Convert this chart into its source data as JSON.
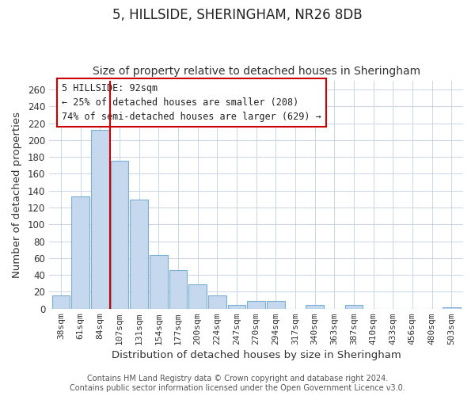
{
  "title": "5, HILLSIDE, SHERINGHAM, NR26 8DB",
  "subtitle": "Size of property relative to detached houses in Sheringham",
  "xlabel": "Distribution of detached houses by size in Sheringham",
  "ylabel": "Number of detached properties",
  "bar_labels": [
    "38sqm",
    "61sqm",
    "84sqm",
    "107sqm",
    "131sqm",
    "154sqm",
    "177sqm",
    "200sqm",
    "224sqm",
    "247sqm",
    "270sqm",
    "294sqm",
    "317sqm",
    "340sqm",
    "363sqm",
    "387sqm",
    "410sqm",
    "433sqm",
    "456sqm",
    "480sqm",
    "503sqm"
  ],
  "bar_values": [
    16,
    133,
    212,
    175,
    129,
    64,
    46,
    29,
    16,
    4,
    9,
    9,
    0,
    4,
    0,
    4,
    0,
    0,
    0,
    0,
    2
  ],
  "bar_color": "#c5d8ee",
  "bar_edge_color": "#7bafd4",
  "ylim": [
    0,
    270
  ],
  "yticks": [
    0,
    20,
    40,
    60,
    80,
    100,
    120,
    140,
    160,
    180,
    200,
    220,
    240,
    260
  ],
  "vline_x": 2.5,
  "vline_color": "#cc0000",
  "annotation_title": "5 HILLSIDE: 92sqm",
  "annotation_line1": "← 25% of detached houses are smaller (208)",
  "annotation_line2": "74% of semi-detached houses are larger (629) →",
  "footer_line1": "Contains HM Land Registry data © Crown copyright and database right 2024.",
  "footer_line2": "Contains public sector information licensed under the Open Government Licence v3.0.",
  "background_color": "#ffffff",
  "grid_color": "#c8d4e8"
}
